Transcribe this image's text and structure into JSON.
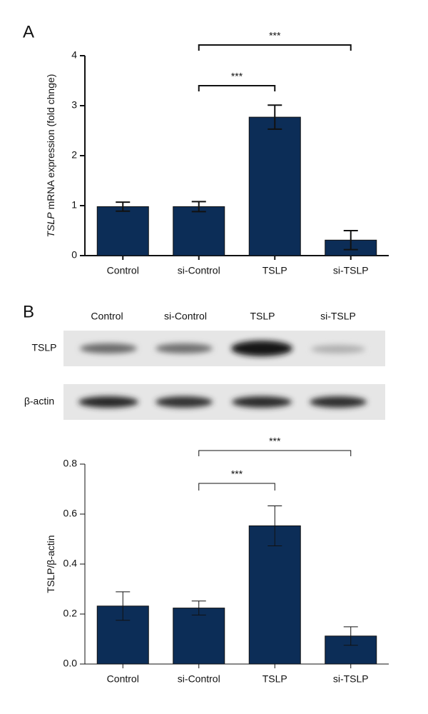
{
  "chart_data": [
    {
      "type": "bar",
      "panel_label": "A",
      "ylabel_parts": [
        "TSLP",
        "mRNA expression (fold chnge)"
      ],
      "ylabel_italic": [
        true,
        false
      ],
      "categories": [
        "Control",
        "si-Control",
        "TSLP",
        "si-TSLP"
      ],
      "values": [
        0.98,
        0.98,
        2.77,
        0.31
      ],
      "errors": [
        0.09,
        0.1,
        0.24,
        0.19
      ],
      "color": "#0c2d57",
      "ylim": [
        0,
        4
      ],
      "yticks": [
        0,
        1,
        2,
        3,
        4
      ],
      "comparisons": [
        {
          "from": 1,
          "to": 2,
          "label": "***"
        },
        {
          "from": 1,
          "to": 3,
          "label": "***"
        }
      ]
    },
    {
      "type": "bar",
      "ylabel_parts": [
        "TSLP/β-actin"
      ],
      "ylabel_italic": [
        false
      ],
      "categories": [
        "Control",
        "si-Control",
        "TSLP",
        "si-TSLP"
      ],
      "values": [
        0.232,
        0.224,
        0.553,
        0.112
      ],
      "errors": [
        0.057,
        0.028,
        0.08,
        0.037
      ],
      "color": "#0c2d57",
      "ylim": [
        0,
        0.8
      ],
      "yticks": [
        {
          "value": 0,
          "label": "0.0"
        },
        0.2,
        0.4,
        0.6,
        0.8
      ],
      "comparisons": [
        {
          "from": 1,
          "to": 2,
          "label": "***"
        },
        {
          "from": 1,
          "to": 3,
          "label": "***"
        }
      ]
    }
  ],
  "blot": {
    "panel_label": "B",
    "lanes": [
      "Control",
      "si-Control",
      "TSLP",
      "si-TSLP"
    ],
    "rows": [
      "TSLP",
      "β-actin"
    ]
  }
}
